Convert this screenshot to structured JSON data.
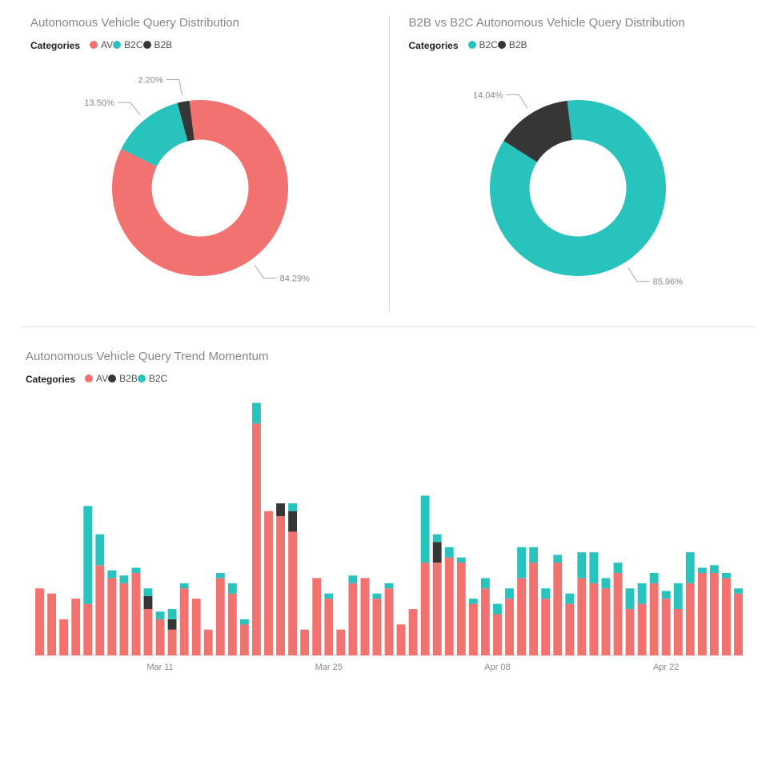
{
  "colors": {
    "av": "#f1726f",
    "b2c": "#29c3be",
    "b2b": "#363636",
    "title": "#888888",
    "label": "#888888",
    "grid": "#e0e0e0",
    "bg": "#ffffff"
  },
  "donut_left": {
    "title": "Autonomous Vehicle Query Distribution",
    "legend_label": "Categories",
    "type": "donut",
    "inner_ratio": 0.55,
    "start_angle_deg": -7,
    "slices": [
      {
        "name": "AV",
        "value": 84.29,
        "color": "#f1726f",
        "label": "84.29%"
      },
      {
        "name": "B2C",
        "value": 13.5,
        "color": "#29c3be",
        "label": "13.50%"
      },
      {
        "name": "B2B",
        "value": 2.2,
        "color": "#363636",
        "label": "2.20%"
      }
    ]
  },
  "donut_right": {
    "title": "B2B vs B2C Autonomous Vehicle Query Distribution",
    "legend_label": "Categories",
    "type": "donut",
    "inner_ratio": 0.55,
    "start_angle_deg": -7,
    "slices": [
      {
        "name": "B2C",
        "value": 85.96,
        "color": "#29c3be",
        "label": "85.96%"
      },
      {
        "name": "B2B",
        "value": 14.04,
        "color": "#363636",
        "label": "14.04%"
      }
    ]
  },
  "bar_chart": {
    "title": "Autonomous Vehicle Query Trend Momentum",
    "legend_label": "Categories",
    "type": "stacked-bar",
    "series_order": [
      "AV",
      "B2B",
      "B2C"
    ],
    "series_colors": {
      "AV": "#f1726f",
      "B2B": "#363636",
      "B2C": "#29c3be"
    },
    "ylim": [
      0,
      100
    ],
    "bar_width_ratio": 0.72,
    "x_tick_labels": [
      "Mar 11",
      "Mar 25",
      "Apr 08",
      "Apr 22"
    ],
    "x_tick_indices": [
      10,
      24,
      38,
      52
    ],
    "data": [
      {
        "AV": 26,
        "B2B": 0,
        "B2C": 0
      },
      {
        "AV": 24,
        "B2B": 0,
        "B2C": 0
      },
      {
        "AV": 14,
        "B2B": 0,
        "B2C": 0
      },
      {
        "AV": 22,
        "B2B": 0,
        "B2C": 0
      },
      {
        "AV": 20,
        "B2B": 0,
        "B2C": 38
      },
      {
        "AV": 35,
        "B2B": 0,
        "B2C": 12
      },
      {
        "AV": 30,
        "B2B": 0,
        "B2C": 3
      },
      {
        "AV": 28,
        "B2B": 0,
        "B2C": 3
      },
      {
        "AV": 32,
        "B2B": 0,
        "B2C": 2
      },
      {
        "AV": 18,
        "B2B": 5,
        "B2C": 3
      },
      {
        "AV": 14,
        "B2B": 0,
        "B2C": 3
      },
      {
        "AV": 10,
        "B2B": 4,
        "B2C": 4
      },
      {
        "AV": 26,
        "B2B": 0,
        "B2C": 2
      },
      {
        "AV": 22,
        "B2B": 0,
        "B2C": 0
      },
      {
        "AV": 10,
        "B2B": 0,
        "B2C": 0
      },
      {
        "AV": 30,
        "B2B": 0,
        "B2C": 2
      },
      {
        "AV": 24,
        "B2B": 0,
        "B2C": 4
      },
      {
        "AV": 12,
        "B2B": 0,
        "B2C": 2
      },
      {
        "AV": 90,
        "B2B": 0,
        "B2C": 8
      },
      {
        "AV": 56,
        "B2B": 0,
        "B2C": 0
      },
      {
        "AV": 54,
        "B2B": 5,
        "B2C": 0
      },
      {
        "AV": 48,
        "B2B": 8,
        "B2C": 3
      },
      {
        "AV": 10,
        "B2B": 0,
        "B2C": 0
      },
      {
        "AV": 30,
        "B2B": 0,
        "B2C": 0
      },
      {
        "AV": 22,
        "B2B": 0,
        "B2C": 2
      },
      {
        "AV": 10,
        "B2B": 0,
        "B2C": 0
      },
      {
        "AV": 28,
        "B2B": 0,
        "B2C": 3
      },
      {
        "AV": 30,
        "B2B": 0,
        "B2C": 0
      },
      {
        "AV": 22,
        "B2B": 0,
        "B2C": 2
      },
      {
        "AV": 26,
        "B2B": 0,
        "B2C": 2
      },
      {
        "AV": 12,
        "B2B": 0,
        "B2C": 0
      },
      {
        "AV": 18,
        "B2B": 0,
        "B2C": 0
      },
      {
        "AV": 36,
        "B2B": 0,
        "B2C": 26
      },
      {
        "AV": 36,
        "B2B": 8,
        "B2C": 3
      },
      {
        "AV": 38,
        "B2B": 0,
        "B2C": 4
      },
      {
        "AV": 36,
        "B2B": 0,
        "B2C": 2
      },
      {
        "AV": 20,
        "B2B": 0,
        "B2C": 2
      },
      {
        "AV": 26,
        "B2B": 0,
        "B2C": 4
      },
      {
        "AV": 16,
        "B2B": 0,
        "B2C": 4
      },
      {
        "AV": 22,
        "B2B": 0,
        "B2C": 4
      },
      {
        "AV": 30,
        "B2B": 0,
        "B2C": 12
      },
      {
        "AV": 36,
        "B2B": 0,
        "B2C": 6
      },
      {
        "AV": 22,
        "B2B": 0,
        "B2C": 4
      },
      {
        "AV": 36,
        "B2B": 0,
        "B2C": 3
      },
      {
        "AV": 20,
        "B2B": 0,
        "B2C": 4
      },
      {
        "AV": 30,
        "B2B": 0,
        "B2C": 10
      },
      {
        "AV": 28,
        "B2B": 0,
        "B2C": 12
      },
      {
        "AV": 26,
        "B2B": 0,
        "B2C": 4
      },
      {
        "AV": 32,
        "B2B": 0,
        "B2C": 4
      },
      {
        "AV": 18,
        "B2B": 0,
        "B2C": 8
      },
      {
        "AV": 20,
        "B2B": 0,
        "B2C": 8
      },
      {
        "AV": 28,
        "B2B": 0,
        "B2C": 4
      },
      {
        "AV": 22,
        "B2B": 0,
        "B2C": 3
      },
      {
        "AV": 18,
        "B2B": 0,
        "B2C": 10
      },
      {
        "AV": 28,
        "B2B": 0,
        "B2C": 12
      },
      {
        "AV": 32,
        "B2B": 0,
        "B2C": 2
      },
      {
        "AV": 32,
        "B2B": 0,
        "B2C": 3
      },
      {
        "AV": 30,
        "B2B": 0,
        "B2C": 2
      },
      {
        "AV": 24,
        "B2B": 0,
        "B2C": 2
      }
    ]
  }
}
